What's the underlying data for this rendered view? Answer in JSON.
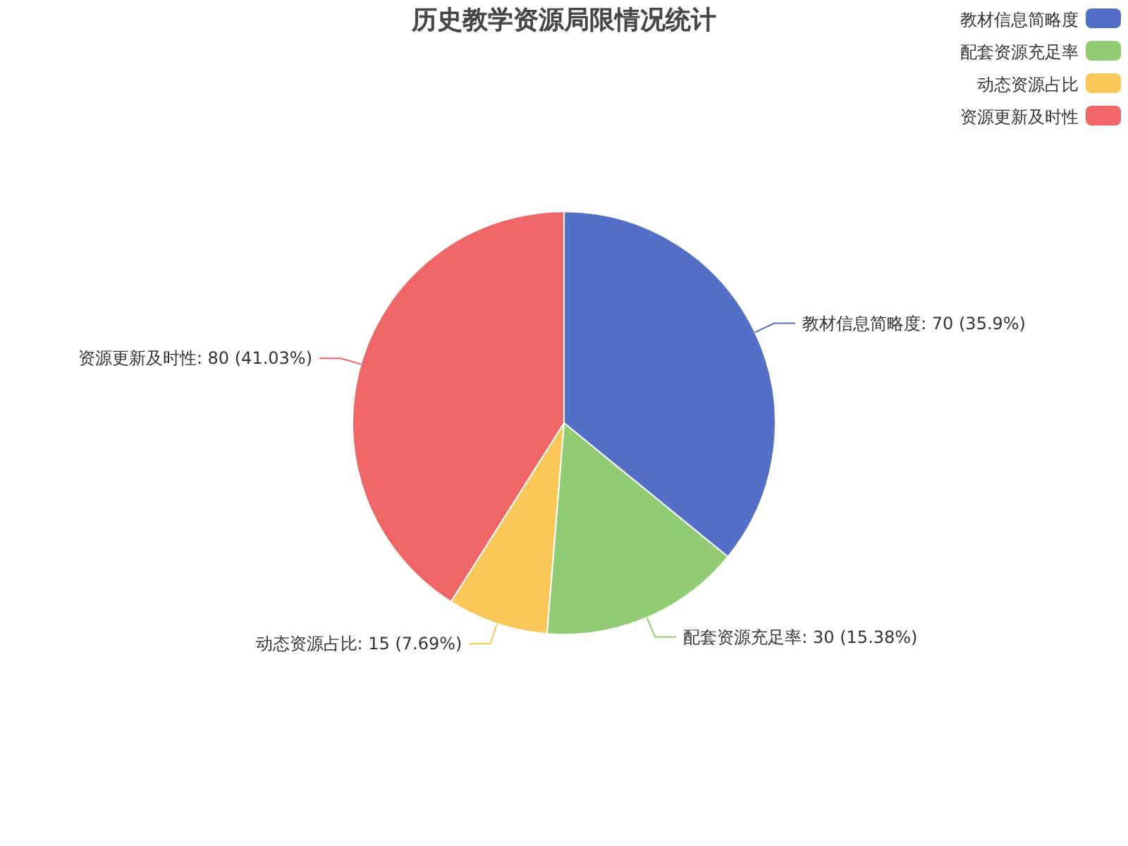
{
  "chart_data": {
    "type": "pie",
    "title": "历史教学资源局限情况统计",
    "categories": [
      "教材信息简略度",
      "配套资源充足率",
      "动态资源占比",
      "资源更新及时性"
    ],
    "values": [
      70,
      30,
      15,
      80
    ],
    "colors": [
      "#5470c6",
      "#91cc75",
      "#fac858",
      "#ee6666"
    ],
    "value_labels": [
      ": 70 (35.9%)",
      ": 30 (15.38%)",
      ": 15 (7.69%)",
      ": 80 (41.03%)"
    ],
    "legend": "top right"
  }
}
